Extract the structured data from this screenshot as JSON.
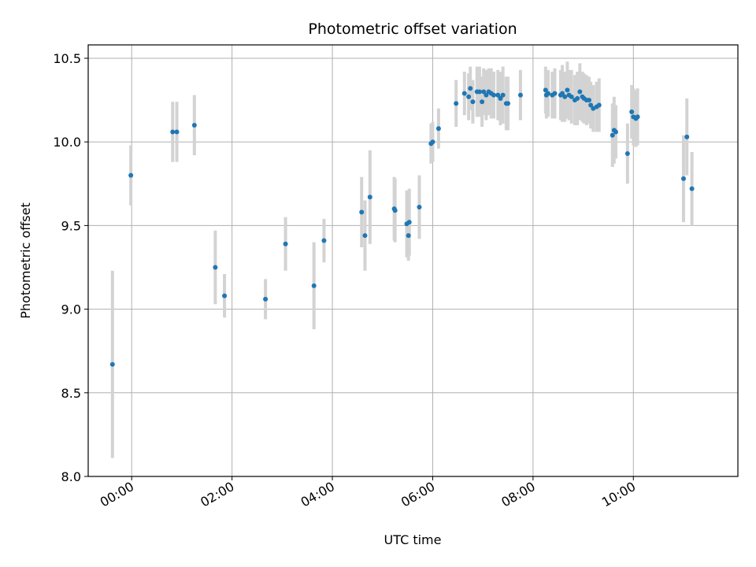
{
  "chart_data": {
    "type": "scatter",
    "title": "Photometric offset variation",
    "xlabel": "UTC time",
    "ylabel": "Photometric offset",
    "x_unit": "UTC time of day (HH:MM)",
    "xlim": [
      "23:08",
      "12:05"
    ],
    "ylim": [
      8.0,
      10.58
    ],
    "x_ticks": [
      "00:00",
      "02:00",
      "04:00",
      "06:00",
      "08:00",
      "10:00"
    ],
    "y_ticks": [
      "8.0",
      "8.5",
      "9.0",
      "9.5",
      "10.0",
      "10.5"
    ],
    "grid": true,
    "legend": false,
    "colors": {
      "marker": "#1f77b4",
      "errorbar": "#d3d3d3",
      "grid": "#b0b0b0"
    },
    "series": [
      {
        "x": [
          "23:37",
          "23:59",
          "00:49",
          "00:54",
          "01:15",
          "01:40",
          "01:51",
          "02:40",
          "03:04",
          "03:38",
          "03:50",
          "04:35",
          "04:39",
          "04:45",
          "05:14",
          "05:15",
          "05:29",
          "05:31",
          "05:32",
          "05:44",
          "05:58",
          "06:00",
          "06:07",
          "06:28",
          "06:38",
          "06:43",
          "06:45",
          "06:48",
          "06:53",
          "06:56",
          "06:59",
          "07:01",
          "07:04",
          "07:07",
          "07:10",
          "07:13",
          "07:18",
          "07:21",
          "07:24",
          "07:28",
          "07:30",
          "07:45",
          "08:15",
          "08:16",
          "08:18",
          "08:23",
          "08:26",
          "08:33",
          "08:35",
          "08:38",
          "08:41",
          "08:43",
          "08:46",
          "08:50",
          "08:53",
          "08:56",
          "08:59",
          "09:01",
          "09:04",
          "09:07",
          "09:09",
          "09:12",
          "09:16",
          "09:19",
          "09:35",
          "09:37",
          "09:39",
          "09:53",
          "09:58",
          "10:00",
          "10:03",
          "10:05",
          "11:00",
          "11:04",
          "11:10"
        ],
        "y": [
          8.67,
          9.8,
          10.06,
          10.06,
          10.1,
          9.25,
          9.08,
          9.06,
          9.39,
          9.14,
          9.41,
          9.58,
          9.44,
          9.67,
          9.6,
          9.59,
          9.51,
          9.44,
          9.52,
          9.61,
          9.99,
          10.0,
          10.08,
          10.23,
          10.29,
          10.27,
          10.32,
          10.24,
          10.3,
          10.3,
          10.24,
          10.3,
          10.28,
          10.3,
          10.29,
          10.28,
          10.28,
          10.26,
          10.28,
          10.23,
          10.23,
          10.28,
          10.31,
          10.28,
          10.29,
          10.28,
          10.29,
          10.28,
          10.29,
          10.27,
          10.31,
          10.28,
          10.27,
          10.25,
          10.26,
          10.3,
          10.27,
          10.26,
          10.25,
          10.25,
          10.22,
          10.2,
          10.21,
          10.22,
          10.04,
          10.07,
          10.06,
          9.93,
          10.18,
          10.15,
          10.14,
          10.15,
          9.78,
          10.03,
          9.72
        ],
        "err": [
          0.56,
          0.18,
          0.18,
          0.18,
          0.18,
          0.22,
          0.13,
          0.12,
          0.16,
          0.26,
          0.13,
          0.21,
          0.21,
          0.28,
          0.19,
          0.19,
          0.2,
          0.15,
          0.2,
          0.19,
          0.12,
          0.12,
          0.12,
          0.14,
          0.13,
          0.14,
          0.13,
          0.13,
          0.15,
          0.15,
          0.15,
          0.14,
          0.15,
          0.14,
          0.15,
          0.14,
          0.15,
          0.16,
          0.17,
          0.16,
          0.16,
          0.15,
          0.14,
          0.14,
          0.14,
          0.14,
          0.15,
          0.15,
          0.17,
          0.15,
          0.17,
          0.15,
          0.16,
          0.15,
          0.16,
          0.17,
          0.15,
          0.15,
          0.15,
          0.14,
          0.14,
          0.14,
          0.15,
          0.16,
          0.19,
          0.2,
          0.16,
          0.18,
          0.16,
          0.17,
          0.17,
          0.17,
          0.26,
          0.23,
          0.22
        ]
      }
    ]
  }
}
